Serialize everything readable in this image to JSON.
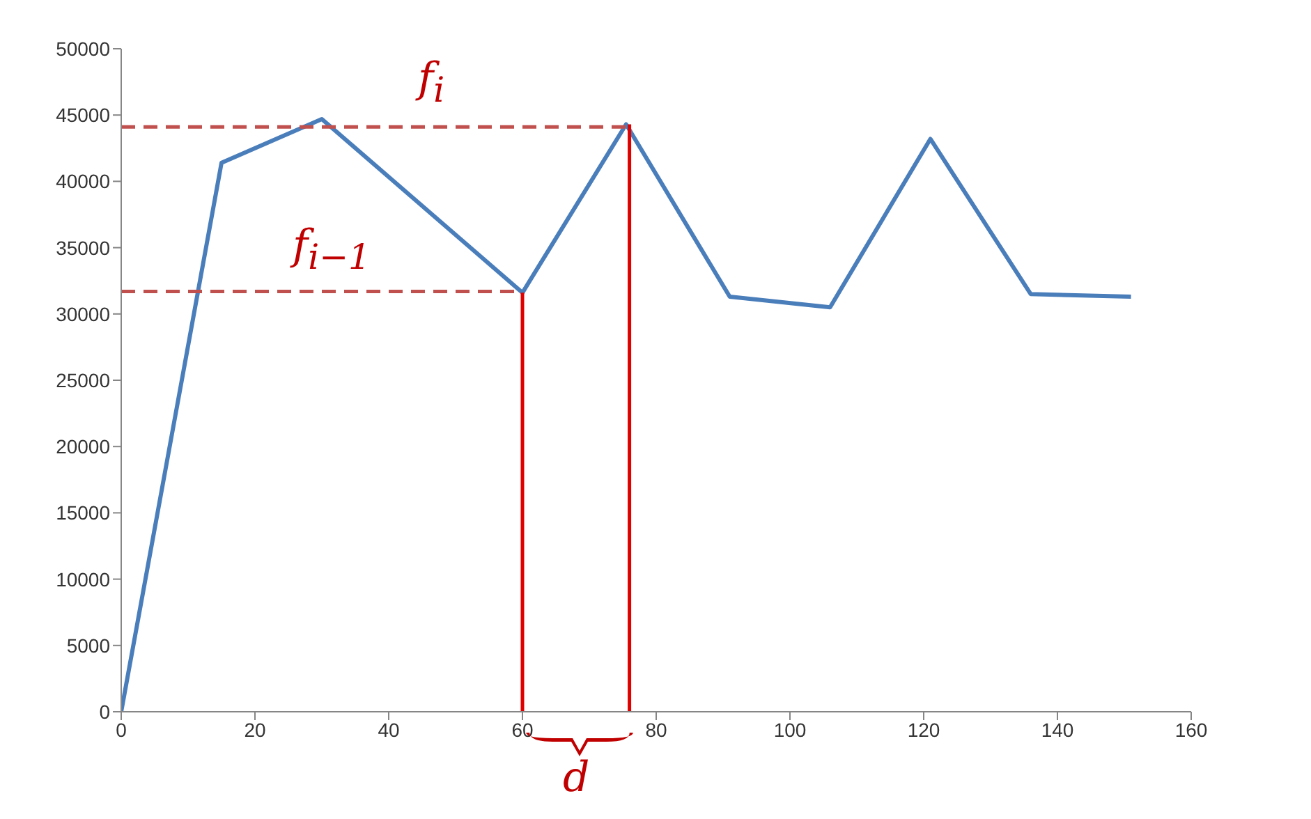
{
  "chart_data": {
    "type": "line",
    "xlim": [
      0,
      160
    ],
    "xticks": [
      0,
      20,
      40,
      60,
      80,
      100,
      120,
      140,
      160
    ],
    "ylim": [
      0,
      50000
    ],
    "yticks": [
      0,
      5000,
      10000,
      15000,
      20000,
      25000,
      30000,
      35000,
      40000,
      45000,
      50000
    ],
    "marker": "none",
    "series": [
      {
        "color": "#4a7ebb",
        "x": [
          0,
          15,
          30,
          60,
          75.5,
          91,
          106,
          121,
          136,
          151
        ],
        "values": [
          0,
          41400,
          44700,
          31600,
          44300,
          31300,
          30500,
          43200,
          31500,
          31300
        ]
      },
      {
        "color": "#c0504d",
        "line_style": "dashed",
        "x": [
          0,
          75.5
        ],
        "values": [
          44100,
          44100
        ]
      },
      {
        "color": "#c0504d",
        "line_style": "dashed",
        "x": [
          0,
          60
        ],
        "values": [
          31700,
          31700
        ]
      },
      {
        "color": "#e00000",
        "line_style": "solid",
        "x": [
          60,
          60
        ],
        "values": [
          0,
          31600
        ]
      },
      {
        "color": "#e00000",
        "line_style": "solid",
        "x": [
          76,
          76
        ],
        "values": [
          0,
          44300
        ]
      }
    ],
    "annotations": [
      "f$_{i}$",
      "f$_{i−1}$",
      "d"
    ]
  }
}
